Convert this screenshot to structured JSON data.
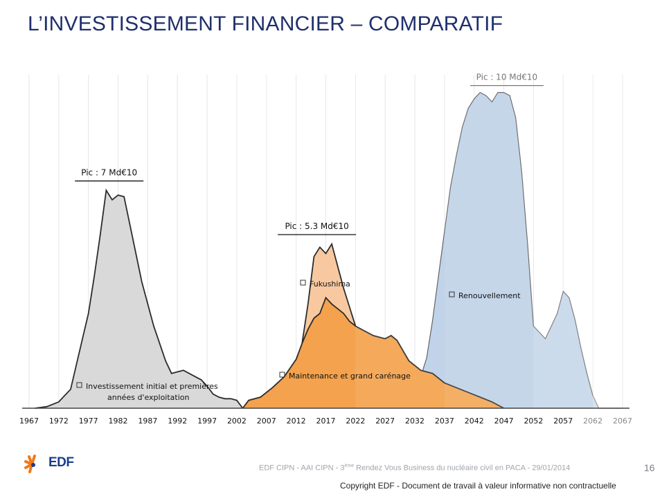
{
  "slide": {
    "title": "L’INVESTISSEMENT FINANCIER – COMPARATIF",
    "page_number": "16",
    "footer_pre": "EDF CIPN - AAI CIPN - 3",
    "footer_sup": "ème",
    "footer_post": " Rendez Vous Business du nucléaire civil en PACA - 29/01/2014",
    "copyright": "Copyright EDF - Document de travail à valeur informative non contractuelle",
    "logo_text": "EDF",
    "icons": [
      "edf-logo-icon"
    ]
  },
  "colors": {
    "initial": "#d9d9d9",
    "maintenance": "#f4a24e",
    "fukushima": "#f8c9a0",
    "renouvellement": "#b8cde6",
    "line": "#2b2b2b",
    "axis": "#444444"
  },
  "chart_data": {
    "type": "area",
    "title": "",
    "xlabel": "",
    "ylabel": "",
    "x_ticks": [
      1967,
      1972,
      1977,
      1982,
      1987,
      1992,
      1997,
      2002,
      2007,
      2012,
      2017,
      2022,
      2027,
      2032,
      2037,
      2042,
      2047,
      2052,
      2057,
      2062,
      2067
    ],
    "xlim": [
      1967,
      2067
    ],
    "ylim": [
      0,
      11
    ],
    "grid": "vertical",
    "peak_labels": [
      {
        "text": "Pic : 7 Md€10",
        "x": 1980.5,
        "value": 7
      },
      {
        "text": "Pic : 5.3 Md€10",
        "x": 2015.5,
        "value": 5.3
      },
      {
        "text": "Pic : 10 Md€10",
        "x": 2047.5,
        "value": 10
      }
    ],
    "series": [
      {
        "name": "Investissement initial et premières années d'exploitation",
        "x": [
          1968,
          1970,
          1972,
          1974,
          1976,
          1977,
          1978,
          1979,
          1980,
          1981,
          1982,
          1983,
          1984,
          1986,
          1988,
          1990,
          1991,
          1993,
          1995,
          1996,
          1997,
          1998,
          1999,
          2000,
          2001,
          2002,
          2003
        ],
        "values": [
          0,
          0.05,
          0.2,
          0.6,
          2.2,
          3,
          4.2,
          5.5,
          6.9,
          6.6,
          6.75,
          6.7,
          5.8,
          4,
          2.6,
          1.5,
          1.1,
          1.2,
          1,
          0.9,
          0.7,
          0.45,
          0.35,
          0.3,
          0.3,
          0.25,
          0
        ]
      },
      {
        "name": "Maintenance et grand carénage",
        "x": [
          2003,
          2004,
          2006,
          2008,
          2010,
          2012,
          2013,
          2014,
          2015,
          2016,
          2017,
          2018,
          2019,
          2020,
          2021,
          2022,
          2023,
          2025,
          2027,
          2028,
          2029,
          2031,
          2033,
          2035,
          2037,
          2039,
          2041,
          2043,
          2045,
          2047
        ],
        "values": [
          0,
          0.25,
          0.35,
          0.65,
          1.0,
          1.55,
          2.05,
          2.5,
          2.85,
          3.0,
          3.5,
          3.3,
          3.15,
          3.0,
          2.75,
          2.6,
          2.5,
          2.3,
          2.2,
          2.3,
          2.15,
          1.5,
          1.2,
          1.1,
          0.8,
          0.65,
          0.5,
          0.35,
          0.2,
          0
        ]
      },
      {
        "name": "Fukushima",
        "x": [
          2013,
          2014,
          2015,
          2016,
          2017,
          2018,
          2019,
          2020,
          2021,
          2022
        ],
        "values": [
          2.05,
          3.3,
          4.8,
          5.1,
          4.9,
          5.2,
          4.5,
          3.8,
          3.2,
          2.6
        ]
      },
      {
        "name": "Renouvellement",
        "x": [
          2032,
          2033,
          2034,
          2035,
          2036,
          2037,
          2038,
          2039,
          2040,
          2041,
          2042,
          2043,
          2044,
          2045,
          2046,
          2047,
          2048,
          2049,
          2050,
          2051,
          2052,
          2053,
          2054,
          2055,
          2056,
          2057,
          2058,
          2059,
          2060,
          2061,
          2062,
          2063,
          2064,
          2065,
          2066,
          2067
        ],
        "values": [
          1.2,
          1.0,
          1.6,
          2.8,
          4.2,
          5.6,
          7.0,
          8.0,
          8.9,
          9.5,
          9.8,
          10.0,
          9.9,
          9.7,
          10.0,
          10.0,
          9.9,
          9.2,
          7.5,
          5.2,
          2.6,
          2.4,
          2.2,
          2.6,
          3.0,
          3.7,
          3.5,
          2.8,
          1.9,
          1.1,
          0.4,
          0,
          0,
          0,
          0,
          0
        ]
      }
    ]
  }
}
